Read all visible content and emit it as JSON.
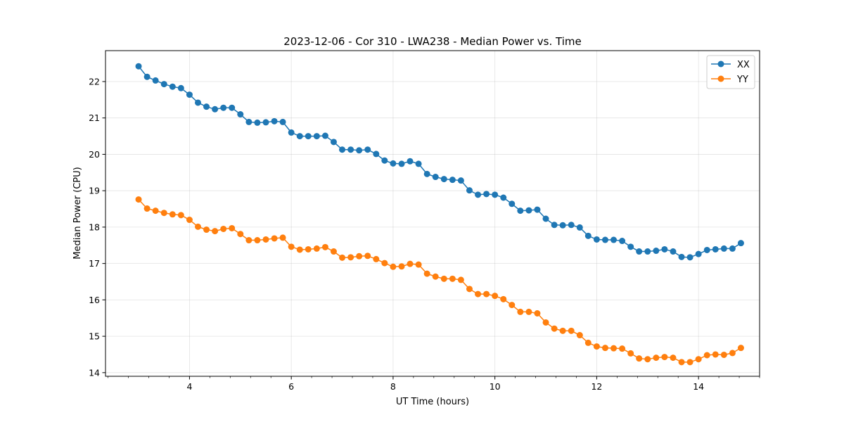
{
  "chart_data": {
    "type": "line",
    "title": "2023-12-06 - Cor 310 - LWA238 - Median Power vs. Time",
    "xlabel": "UT Time (hours)",
    "ylabel": "Median Power (CPU)",
    "xlim": [
      2.35,
      15.2
    ],
    "ylim": [
      13.9,
      22.85
    ],
    "xticks": [
      4,
      6,
      8,
      10,
      12,
      14
    ],
    "xtick_labels": [
      "4",
      "6",
      "8",
      "10",
      "12",
      "14"
    ],
    "xminor_step": 0.4,
    "yticks": [
      14,
      15,
      16,
      17,
      18,
      19,
      20,
      21,
      22
    ],
    "ytick_labels": [
      "14",
      "15",
      "16",
      "17",
      "18",
      "19",
      "20",
      "21",
      "22"
    ],
    "grid": true,
    "legend_position": "upper right",
    "x": [
      3.0,
      3.167,
      3.333,
      3.5,
      3.667,
      3.833,
      4.0,
      4.167,
      4.333,
      4.5,
      4.667,
      4.833,
      5.0,
      5.167,
      5.333,
      5.5,
      5.667,
      5.833,
      6.0,
      6.167,
      6.333,
      6.5,
      6.667,
      6.833,
      7.0,
      7.167,
      7.333,
      7.5,
      7.667,
      7.833,
      8.0,
      8.167,
      8.333,
      8.5,
      8.667,
      8.833,
      9.0,
      9.167,
      9.333,
      9.5,
      9.667,
      9.833,
      10.0,
      10.167,
      10.333,
      10.5,
      10.667,
      10.833,
      11.0,
      11.167,
      11.333,
      11.5,
      11.667,
      11.833,
      12.0,
      12.167,
      12.333,
      12.5,
      12.667,
      12.833,
      13.0,
      13.167,
      13.333,
      13.5,
      13.667,
      13.833,
      14.0,
      14.167,
      14.333,
      14.5,
      14.667,
      14.833
    ],
    "series": [
      {
        "name": "XX",
        "color": "#1f77b4",
        "values": [
          22.42,
          22.13,
          22.03,
          21.93,
          21.86,
          21.82,
          21.64,
          21.42,
          21.31,
          21.24,
          21.28,
          21.28,
          21.1,
          20.89,
          20.87,
          20.88,
          20.91,
          20.89,
          20.6,
          20.5,
          20.5,
          20.5,
          20.51,
          20.34,
          20.13,
          20.13,
          20.11,
          20.13,
          20.01,
          19.83,
          19.75,
          19.74,
          19.81,
          19.74,
          19.46,
          19.38,
          19.32,
          19.3,
          19.28,
          19.01,
          18.89,
          18.91,
          18.89,
          18.81,
          18.64,
          18.45,
          18.46,
          18.48,
          18.23,
          18.06,
          18.05,
          18.06,
          17.99,
          17.76,
          17.66,
          17.65,
          17.65,
          17.62,
          17.46,
          17.33,
          17.33,
          17.35,
          17.39,
          17.33,
          17.18,
          17.17,
          17.26,
          17.37,
          17.39,
          17.41,
          17.41,
          17.56
        ]
      },
      {
        "name": "YY",
        "color": "#ff7f0e",
        "values": [
          18.76,
          18.51,
          18.45,
          18.39,
          18.35,
          18.33,
          18.2,
          18.01,
          17.93,
          17.89,
          17.95,
          17.97,
          17.81,
          17.64,
          17.64,
          17.66,
          17.69,
          17.71,
          17.46,
          17.38,
          17.39,
          17.41,
          17.45,
          17.33,
          17.16,
          17.17,
          17.2,
          17.21,
          17.12,
          17.01,
          16.91,
          16.92,
          16.99,
          16.97,
          16.72,
          16.64,
          16.58,
          16.58,
          16.55,
          16.3,
          16.16,
          16.16,
          16.11,
          16.02,
          15.86,
          15.67,
          15.67,
          15.63,
          15.38,
          15.21,
          15.15,
          15.15,
          15.03,
          14.82,
          14.72,
          14.68,
          14.67,
          14.66,
          14.53,
          14.39,
          14.37,
          14.41,
          14.43,
          14.41,
          14.29,
          14.29,
          14.37,
          14.48,
          14.5,
          14.49,
          14.54,
          14.68
        ]
      }
    ]
  }
}
